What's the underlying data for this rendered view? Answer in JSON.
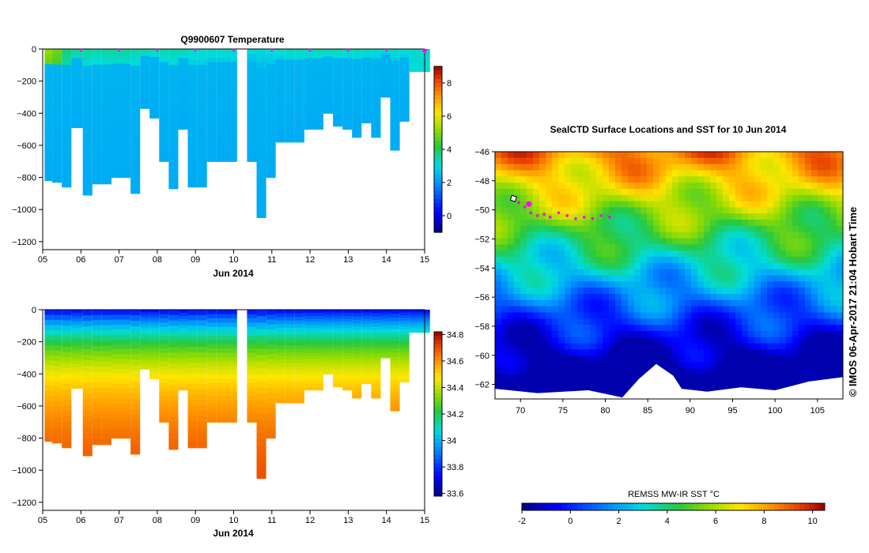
{
  "chart_data": [
    {
      "type": "heatmap",
      "title": "Q9900607  Temperature",
      "xlabel": "Jun 2014",
      "ylabel": "",
      "xlim": [
        5,
        15
      ],
      "ylim": [
        -1250,
        0
      ],
      "x_ticks": [
        "05",
        "06",
        "07",
        "08",
        "09",
        "10",
        "11",
        "12",
        "13",
        "14",
        "15"
      ],
      "y_ticks": [
        0,
        -200,
        -400,
        -600,
        -800,
        -1000,
        -1200
      ],
      "colorbar": {
        "range": [
          -1,
          9
        ],
        "ticks": [
          0,
          2,
          4,
          6,
          8
        ]
      },
      "profiles": [
        {
          "day": 5.05,
          "max_depth": 820,
          "surface_value": 5.2,
          "deep_value": 2.3
        },
        {
          "day": 5.25,
          "max_depth": 830,
          "surface_value": 4.9,
          "deep_value": 2.3
        },
        {
          "day": 5.5,
          "max_depth": 860,
          "surface_value": 3.8,
          "deep_value": 2.3
        },
        {
          "day": 5.75,
          "max_depth": 490,
          "surface_value": 3.6,
          "deep_value": 2.3
        },
        {
          "day": 6.05,
          "max_depth": 910,
          "surface_value": 3.5,
          "deep_value": 2.3
        },
        {
          "day": 6.3,
          "max_depth": 840,
          "surface_value": 3.4,
          "deep_value": 2.3
        },
        {
          "day": 6.55,
          "max_depth": 840,
          "surface_value": 3.5,
          "deep_value": 2.3
        },
        {
          "day": 6.8,
          "max_depth": 800,
          "surface_value": 3.5,
          "deep_value": 2.3
        },
        {
          "day": 7.05,
          "max_depth": 800,
          "surface_value": 3.5,
          "deep_value": 2.3
        },
        {
          "day": 7.3,
          "max_depth": 900,
          "surface_value": 3.4,
          "deep_value": 2.3
        },
        {
          "day": 7.55,
          "max_depth": 370,
          "surface_value": 3.5,
          "deep_value": 2.3
        },
        {
          "day": 7.8,
          "max_depth": 430,
          "surface_value": 3.4,
          "deep_value": 2.3
        },
        {
          "day": 8.05,
          "max_depth": 700,
          "surface_value": 3.4,
          "deep_value": 2.3
        },
        {
          "day": 8.3,
          "max_depth": 870,
          "surface_value": 3.4,
          "deep_value": 2.3
        },
        {
          "day": 8.55,
          "max_depth": 500,
          "surface_value": 3.4,
          "deep_value": 2.3
        },
        {
          "day": 8.8,
          "max_depth": 860,
          "surface_value": 3.2,
          "deep_value": 2.3
        },
        {
          "day": 9.05,
          "max_depth": 860,
          "surface_value": 3.2,
          "deep_value": 2.3
        },
        {
          "day": 9.3,
          "max_depth": 700,
          "surface_value": 3.2,
          "deep_value": 2.3
        },
        {
          "day": 9.55,
          "max_depth": 700,
          "surface_value": 3.2,
          "deep_value": 2.3
        },
        {
          "day": 10.35,
          "max_depth": 700,
          "surface_value": 3.0,
          "deep_value": 2.3
        },
        {
          "day": 10.6,
          "max_depth": 1050,
          "surface_value": 3.0,
          "deep_value": 2.3
        },
        {
          "day": 10.85,
          "max_depth": 800,
          "surface_value": 3.1,
          "deep_value": 2.3
        },
        {
          "day": 11.1,
          "max_depth": 580,
          "surface_value": 3.2,
          "deep_value": 2.3
        },
        {
          "day": 11.35,
          "max_depth": 580,
          "surface_value": 3.3,
          "deep_value": 2.3
        },
        {
          "day": 11.6,
          "max_depth": 580,
          "surface_value": 3.3,
          "deep_value": 2.3
        },
        {
          "day": 11.85,
          "max_depth": 500,
          "surface_value": 3.3,
          "deep_value": 2.3
        },
        {
          "day": 12.1,
          "max_depth": 500,
          "surface_value": 3.4,
          "deep_value": 2.3
        },
        {
          "day": 12.35,
          "max_depth": 400,
          "surface_value": 3.4,
          "deep_value": 2.3
        },
        {
          "day": 12.6,
          "max_depth": 480,
          "surface_value": 3.4,
          "deep_value": 2.3
        },
        {
          "day": 12.85,
          "max_depth": 500,
          "surface_value": 3.3,
          "deep_value": 2.3
        },
        {
          "day": 13.1,
          "max_depth": 550,
          "surface_value": 3.3,
          "deep_value": 2.3
        },
        {
          "day": 13.35,
          "max_depth": 460,
          "surface_value": 3.3,
          "deep_value": 2.3
        },
        {
          "day": 13.6,
          "max_depth": 550,
          "surface_value": 3.2,
          "deep_value": 2.3
        },
        {
          "day": 13.85,
          "max_depth": 300,
          "surface_value": 3.2,
          "deep_value": 2.3
        },
        {
          "day": 14.1,
          "max_depth": 630,
          "surface_value": 3.2,
          "deep_value": 2.3
        },
        {
          "day": 14.35,
          "max_depth": 450,
          "surface_value": 3.2,
          "deep_value": 2.3
        },
        {
          "day": 14.6,
          "max_depth": 140,
          "surface_value": 3.4,
          "deep_value": 3.0
        }
      ],
      "markers_days": [
        6,
        7,
        8,
        9,
        10,
        11,
        12,
        13,
        14,
        15
      ],
      "gaps": [
        [
          9.75,
          10.3
        ]
      ]
    },
    {
      "type": "heatmap",
      "title": "",
      "xlabel": "Jun 2014",
      "ylabel": "",
      "xlim": [
        5,
        15
      ],
      "ylim": [
        -1250,
        0
      ],
      "x_ticks": [
        "05",
        "06",
        "07",
        "08",
        "09",
        "10",
        "11",
        "12",
        "13",
        "14",
        "15"
      ],
      "y_ticks": [
        0,
        -200,
        -400,
        -600,
        -800,
        -1000,
        -1200
      ],
      "colorbar": {
        "range": [
          33.58,
          34.82
        ],
        "ticks": [
          33.6,
          33.8,
          34,
          34.2,
          34.4,
          34.6,
          34.8
        ],
        "tick_labels": [
          "33.6",
          "33.8",
          "34",
          "34.2",
          "34.4",
          "34.6",
          "34.8"
        ]
      },
      "profiles_share_top_panel": true,
      "gaps": [
        [
          9.75,
          10.3
        ]
      ]
    },
    {
      "type": "heatmap",
      "title": "SealCTD Surface Locations and SST for 10 Jun 2014",
      "xlabel": "",
      "ylabel": "",
      "xlim": [
        67,
        108
      ],
      "ylim": [
        -63,
        -46
      ],
      "x_ticks": [
        70,
        75,
        80,
        85,
        90,
        95,
        100,
        105
      ],
      "y_ticks": [
        -46,
        -48,
        -50,
        -52,
        -54,
        -56,
        -58,
        -60,
        -62
      ],
      "colorbar": {
        "label": "REMSS MW-IR SST °C",
        "range": [
          -2,
          10.5
        ],
        "ticks": [
          -2,
          0,
          2,
          4,
          6,
          8,
          10
        ]
      },
      "seal_track": {
        "lon": [
          69.8,
          70.5,
          71.2,
          72.0,
          72.8,
          73.5,
          74.5,
          75.5,
          76.5,
          77.5,
          78.5,
          79.5,
          80.5
        ],
        "lat": [
          -49.5,
          -49.8,
          -50.2,
          -50.4,
          -50.3,
          -50.5,
          -50.2,
          -50.4,
          -50.6,
          -50.5,
          -50.6,
          -50.4,
          -50.5
        ]
      },
      "current_location": {
        "lon": 71.0,
        "lat": -49.6
      }
    }
  ],
  "footer": {
    "credit": "© IMOS 06-Apr-2017 21:04 Hobart Time"
  },
  "colors": {
    "marker": "#ff00ff",
    "land": "#ffffff"
  }
}
